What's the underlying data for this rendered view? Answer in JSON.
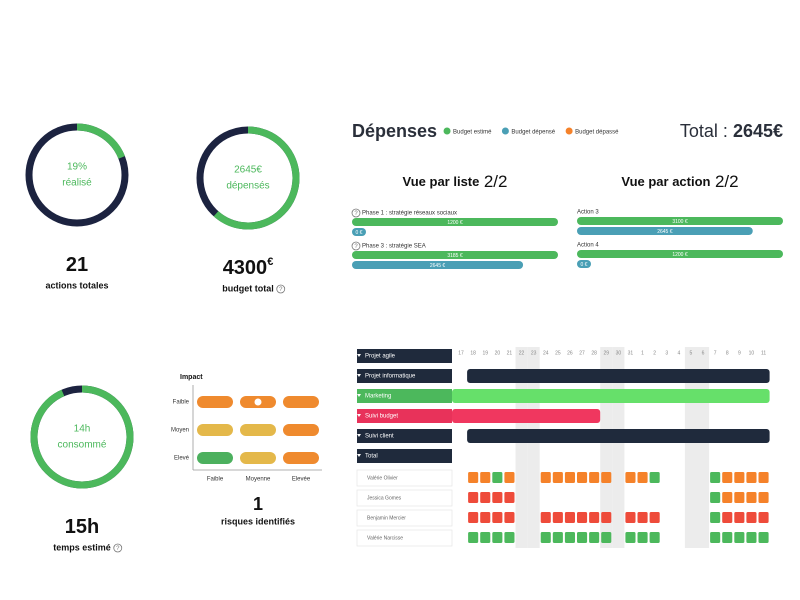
{
  "rings": [
    {
      "percent": 19,
      "label": "19%",
      "caption": "réalisé",
      "big": 21,
      "sub": "actions totales"
    },
    {
      "value": 2645,
      "label": "2645€",
      "caption": "dépensés",
      "total": 4300,
      "unit": "€",
      "sub": "budget total",
      "help": true
    },
    {
      "value": 14,
      "label": "14h",
      "caption": "consommé",
      "total": 15,
      "total_label": "15h",
      "sub": "temps estimé",
      "help": true
    }
  ],
  "help_icon": "?",
  "risks": {
    "axis_title": "Impact",
    "rows": [
      "Faible",
      "Moyen",
      "Elevé"
    ],
    "cols": [
      "Faible",
      "Moyenne",
      "Elevée"
    ],
    "colors": [
      [
        "#ef8a2e",
        "#ef8a2e",
        "#ef8a2e"
      ],
      [
        "#e4b84a",
        "#e4b84a",
        "#ef8a2e"
      ],
      [
        "#4cb05e",
        "#e4b84a",
        "#ef8a2e"
      ]
    ],
    "marked": [
      0,
      1
    ],
    "count": 1,
    "caption": "risques identifiés"
  },
  "expenses": {
    "title": "Dépenses",
    "legend": [
      {
        "name": "Budget estimé",
        "color": "#4cb85c"
      },
      {
        "name": "Budget dépensé",
        "color": "#4a9fb5"
      },
      {
        "name": "Budget dépassé",
        "color": "#f5822a"
      }
    ],
    "total_label": "Total :",
    "total_value": "2645€",
    "views": [
      {
        "heading": "Vue par liste",
        "page": "2/2",
        "items": [
          {
            "name": "Phase 1 : stratégie réseaux sociaux",
            "help": true,
            "estimated": 1200,
            "estimated_label": "1200 €",
            "spent": 0,
            "spent_label": "0 €"
          },
          {
            "name": "Phase 3 : stratégie SEA",
            "help": true,
            "estimated": 3185,
            "estimated_label": "3185 €",
            "spent": 2645,
            "spent_label": "2645 €"
          }
        ]
      },
      {
        "heading": "Vue par action",
        "page": "2/2",
        "items": [
          {
            "name": "Action 3",
            "estimated": 3100,
            "estimated_label": "3100 €",
            "spent": 2645,
            "spent_label": "2645 €"
          },
          {
            "name": "Action 4",
            "estimated": 1200,
            "estimated_label": "1200 €",
            "spent": 0,
            "spent_label": "0 €"
          }
        ]
      }
    ]
  },
  "gantt": {
    "days": [
      "17",
      "18",
      "19",
      "20",
      "21",
      "22",
      "23",
      "24",
      "25",
      "26",
      "27",
      "28",
      "29",
      "30",
      "31",
      "1",
      "2",
      "3",
      "4",
      "5",
      "6",
      "7",
      "8",
      "9",
      "10",
      "11"
    ],
    "shaded_days": [
      "22",
      "23",
      "29",
      "30",
      "5",
      "6"
    ],
    "rows": [
      {
        "name": "Projet agile",
        "color": "#1f2a3c"
      },
      {
        "name": "Projet informatique",
        "color": "#1f2a3c",
        "start": "18",
        "end": "11",
        "bar_color": "#1f2a3c"
      },
      {
        "name": "Marketing",
        "color": "#4cb85c",
        "start": "17",
        "end": "11",
        "bar_color": "#66e06a"
      },
      {
        "name": "Suivi budget",
        "color": "#e8325a",
        "start": "17",
        "end": "28",
        "bar_color": "#f0375f"
      },
      {
        "name": "Suivi client",
        "color": "#1f2a3c",
        "start": "18",
        "end": "11",
        "bar_color": "#1f2a3c"
      },
      {
        "name": "Total",
        "color": "#1f2a3c"
      }
    ],
    "palette": {
      "o": "#f5822a",
      "r": "#ee4b3a",
      "g": "#4cb85c"
    },
    "people": [
      {
        "name": "Valérie Olivier",
        "cells": [
          null,
          "o",
          "o",
          "g",
          "o",
          null,
          null,
          "o",
          "o",
          "o",
          "o",
          "o",
          "o",
          null,
          "o",
          "o",
          "g",
          null,
          null,
          null,
          null,
          "g",
          "o",
          "o",
          "o",
          "o"
        ]
      },
      {
        "name": "Jessica Gomes",
        "cells": [
          null,
          "r",
          "r",
          "r",
          "r",
          null,
          null,
          null,
          null,
          null,
          null,
          null,
          null,
          null,
          null,
          null,
          null,
          null,
          null,
          null,
          null,
          "g",
          "o",
          "o",
          "o",
          "o"
        ]
      },
      {
        "name": "Benjamin Mercier",
        "cells": [
          null,
          "r",
          "r",
          "r",
          "r",
          null,
          null,
          "r",
          "r",
          "r",
          "r",
          "r",
          "r",
          null,
          "r",
          "r",
          "r",
          null,
          null,
          null,
          null,
          "g",
          "r",
          "r",
          "r",
          "r"
        ]
      },
      {
        "name": "Valérie Narcisse",
        "cells": [
          null,
          "g",
          "g",
          "g",
          "g",
          null,
          null,
          "g",
          "g",
          "g",
          "g",
          "g",
          "g",
          null,
          "g",
          "g",
          "g",
          null,
          null,
          null,
          null,
          "g",
          "g",
          "g",
          "g",
          "g"
        ]
      }
    ]
  }
}
